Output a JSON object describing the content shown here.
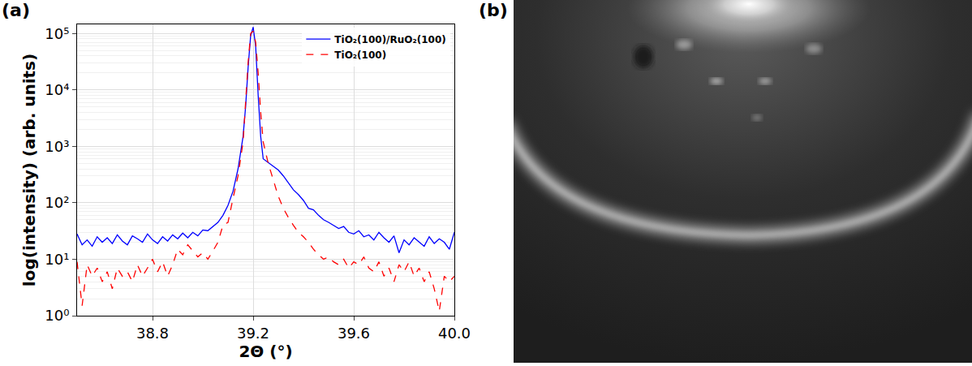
{
  "panel_labels": [
    "(a)",
    "(b)"
  ],
  "chart_data": {
    "type": "line",
    "x_label": "2Θ (°)",
    "y_label": "log(intensity) (arb. units)",
    "log": "y",
    "grid": true,
    "legend": "upper right",
    "xlim": [
      38.5,
      40.0
    ],
    "xticks": [
      38.8,
      39.2,
      39.6,
      {
        "value": 40.0,
        "label": "40.0"
      }
    ],
    "ylim": [
      1,
      145000
    ],
    "yticks": [
      {
        "value": 1,
        "label": "10⁰"
      },
      {
        "value": 10,
        "label": "10¹"
      },
      {
        "value": 100,
        "label": "10²"
      },
      {
        "value": 1000,
        "label": "10³"
      },
      {
        "value": 10000,
        "label": "10⁴"
      },
      {
        "value": 100000,
        "label": "10⁵"
      }
    ],
    "x": [
      38.5,
      38.52,
      38.54,
      38.56,
      38.58,
      38.6,
      38.62,
      38.64,
      38.66,
      38.68,
      38.7,
      38.72,
      38.74,
      38.76,
      38.78,
      38.8,
      38.82,
      38.84,
      38.86,
      38.88,
      38.9,
      38.92,
      38.94,
      38.96,
      38.98,
      39.0,
      39.02,
      39.04,
      39.06,
      39.08,
      39.1,
      39.12,
      39.14,
      39.16,
      39.17,
      39.18,
      39.19,
      39.2,
      39.21,
      39.22,
      39.23,
      39.24,
      39.26,
      39.28,
      39.3,
      39.32,
      39.34,
      39.36,
      39.38,
      39.4,
      39.42,
      39.44,
      39.46,
      39.48,
      39.5,
      39.52,
      39.54,
      39.56,
      39.58,
      39.6,
      39.62,
      39.64,
      39.66,
      39.68,
      39.7,
      39.72,
      39.74,
      39.76,
      39.78,
      39.8,
      39.82,
      39.84,
      39.86,
      39.88,
      39.9,
      39.92,
      39.94,
      39.96,
      39.98,
      40.0
    ],
    "series": [
      {
        "name": "TiO₂(100)/RuO₂(100)",
        "color": "#0000ff",
        "line_style": "solid",
        "values": [
          28,
          18,
          22,
          17,
          25,
          20,
          24,
          19,
          27,
          21,
          18,
          26,
          23,
          20,
          28,
          22,
          19,
          25,
          21,
          27,
          23,
          29,
          24,
          30,
          26,
          33,
          32,
          38,
          45,
          60,
          90,
          160,
          400,
          1500,
          5000,
          25000,
          90000,
          130000,
          60000,
          8000,
          1500,
          600,
          520,
          450,
          380,
          300,
          230,
          170,
          140,
          110,
          80,
          75,
          60,
          50,
          45,
          40,
          35,
          38,
          30,
          28,
          32,
          25,
          27,
          22,
          30,
          24,
          20,
          26,
          13,
          22,
          18,
          24,
          20,
          17,
          25,
          19,
          23,
          20,
          15,
          30
        ]
      },
      {
        "name": "TiO₂(100)",
        "color": "#ff0000",
        "line_style": "dashed",
        "values": [
          9,
          1.5,
          8,
          5,
          7,
          4,
          6,
          3,
          7,
          5,
          6,
          4,
          8,
          5,
          7,
          10,
          6,
          9,
          5,
          8,
          15,
          12,
          18,
          14,
          11,
          13,
          10,
          14,
          20,
          40,
          45,
          120,
          300,
          1200,
          6000,
          30000,
          100000,
          110000,
          70000,
          20000,
          4000,
          1200,
          500,
          250,
          130,
          80,
          55,
          40,
          30,
          25,
          20,
          15,
          12,
          10,
          11,
          9,
          8,
          10,
          7,
          9,
          8,
          11,
          7,
          6,
          9,
          5,
          7,
          4,
          8,
          6,
          9,
          5,
          7,
          4,
          6,
          3,
          1.2,
          5,
          4,
          5
        ]
      }
    ]
  }
}
